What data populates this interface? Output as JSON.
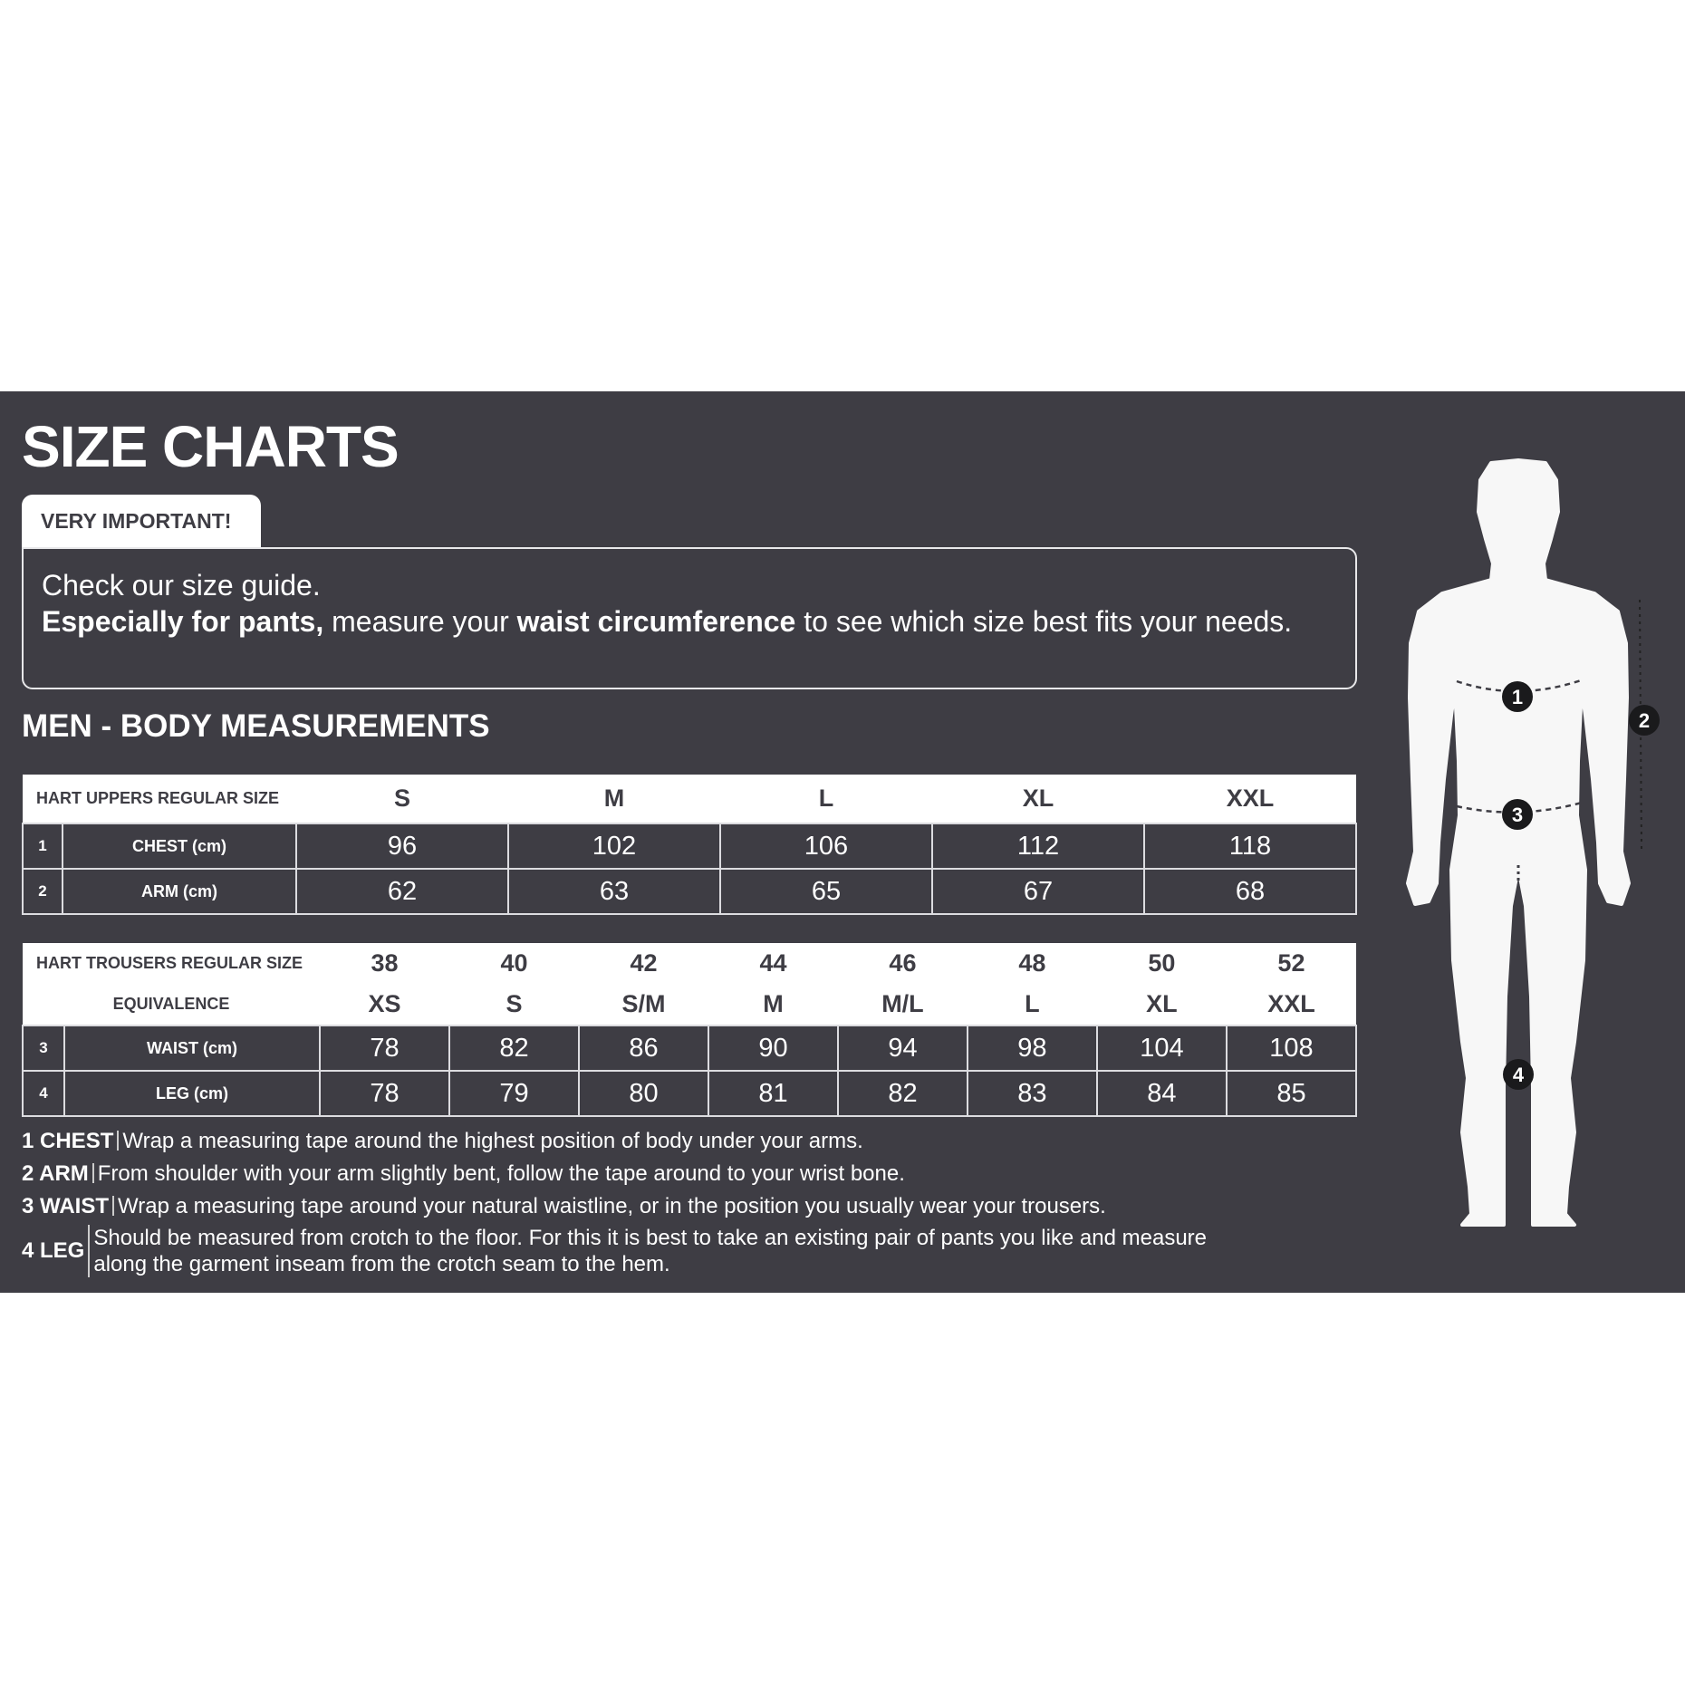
{
  "title": "SIZE CHARTS",
  "notice": {
    "tab_label": "VERY IMPORTANT!",
    "line1": "Check our size guide.",
    "line2_bold1": "Especially for pants,",
    "line2_text1": " measure your ",
    "line2_bold2": "waist circumference",
    "line2_text2": " to see which size best fits your needs."
  },
  "section_title": "MEN - BODY MEASUREMENTS",
  "uppers_table": {
    "header_label": "HART UPPERS REGULAR SIZE",
    "sizes": [
      "S",
      "M",
      "L",
      "XL",
      "XXL"
    ],
    "rows": [
      {
        "num": "1",
        "label": "CHEST (cm)",
        "values": [
          "96",
          "102",
          "106",
          "112",
          "118"
        ]
      },
      {
        "num": "2",
        "label": "ARM (cm)",
        "values": [
          "62",
          "63",
          "65",
          "67",
          "68"
        ]
      }
    ]
  },
  "trousers_table": {
    "header_label": "HART TROUSERS REGULAR SIZE",
    "equivalence_label": "EQUIVALENCE",
    "sizes": [
      "38",
      "40",
      "42",
      "44",
      "46",
      "48",
      "50",
      "52"
    ],
    "equivalence": [
      "XS",
      "S",
      "S/M",
      "M",
      "M/L",
      "L",
      "XL",
      "XXL"
    ],
    "rows": [
      {
        "num": "3",
        "label": "WAIST (cm)",
        "values": [
          "78",
          "82",
          "86",
          "90",
          "94",
          "98",
          "104",
          "108"
        ]
      },
      {
        "num": "4",
        "label": "LEG (cm)",
        "values": [
          "78",
          "79",
          "80",
          "81",
          "82",
          "83",
          "84",
          "85"
        ]
      }
    ]
  },
  "notes": [
    {
      "label": "1 CHEST",
      "text": "Wrap a measuring tape around the highest position of body under your arms."
    },
    {
      "label": "2 ARM",
      "text": "From shoulder with your arm slightly bent, follow the tape around to your wrist bone."
    },
    {
      "label": "3 WAIST",
      "text": "Wrap a measuring tape around your natural waistline, or in the position you usually wear your trousers."
    },
    {
      "label": "4 LEG",
      "text_line1": "Should be measured from crotch to the floor. For this it is best to take an existing pair of pants you like and measure",
      "text_line2": "along the garment inseam from the crotch seam to the hem."
    }
  ],
  "figure": {
    "markers": [
      "1",
      "2",
      "3",
      "4"
    ]
  },
  "colors": {
    "background": "#3e3d44",
    "text": "#ffffff",
    "header_bg": "#ffffff"
  }
}
